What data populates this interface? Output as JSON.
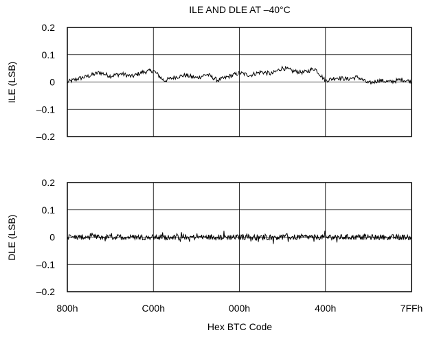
{
  "chart_data": [
    {
      "type": "line",
      "title": "ILE AND DLE AT –40°C",
      "ylabel": "ILE (LSB)",
      "ylim": [
        -0.2,
        0.2
      ],
      "yticks": [
        "0.2",
        "0.1",
        "0",
        "–0.1",
        "–0.2"
      ],
      "xlim": [
        "800h",
        "7FFh"
      ],
      "x_ticks": [
        "800h",
        "C00h",
        "000h",
        "400h",
        "7FFh"
      ],
      "grid": true,
      "series": [
        {
          "x": [
            "800h",
            "880h",
            "900h",
            "980h",
            "A00h",
            "A80h",
            "B00h",
            "B80h",
            "C00h",
            "C80h",
            "D00h",
            "D80h",
            "E00h",
            "E80h",
            "F00h",
            "F80h",
            "000h",
            "080h",
            "100h",
            "180h",
            "200h",
            "280h",
            "300h",
            "380h",
            "400h",
            "480h",
            "500h",
            "580h",
            "600h",
            "680h",
            "700h",
            "780h",
            "7FFh"
          ],
          "values": [
            0.0,
            0.012,
            0.022,
            0.035,
            0.022,
            0.03,
            0.02,
            0.036,
            0.042,
            0.005,
            0.018,
            0.025,
            0.015,
            0.028,
            0.006,
            0.02,
            0.033,
            0.025,
            0.037,
            0.03,
            0.052,
            0.04,
            0.035,
            0.05,
            0.005,
            0.016,
            0.011,
            0.018,
            -0.005,
            0.006,
            0.0,
            0.009,
            0.002
          ]
        }
      ]
    },
    {
      "type": "line",
      "ylabel": "DLE (LSB)",
      "xlabel": "Hex BTC Code",
      "ylim": [
        -0.2,
        0.2
      ],
      "yticks": [
        "0.2",
        "0.1",
        "0",
        "–0.1",
        "–0.2"
      ],
      "x_ticks": [
        "800h",
        "C00h",
        "000h",
        "400h",
        "7FFh"
      ],
      "grid": true,
      "series": [
        {
          "x": [
            "800h",
            "7FFh"
          ],
          "values": [
            0.0,
            0.0
          ],
          "noise_amplitude": 0.01
        }
      ]
    }
  ]
}
